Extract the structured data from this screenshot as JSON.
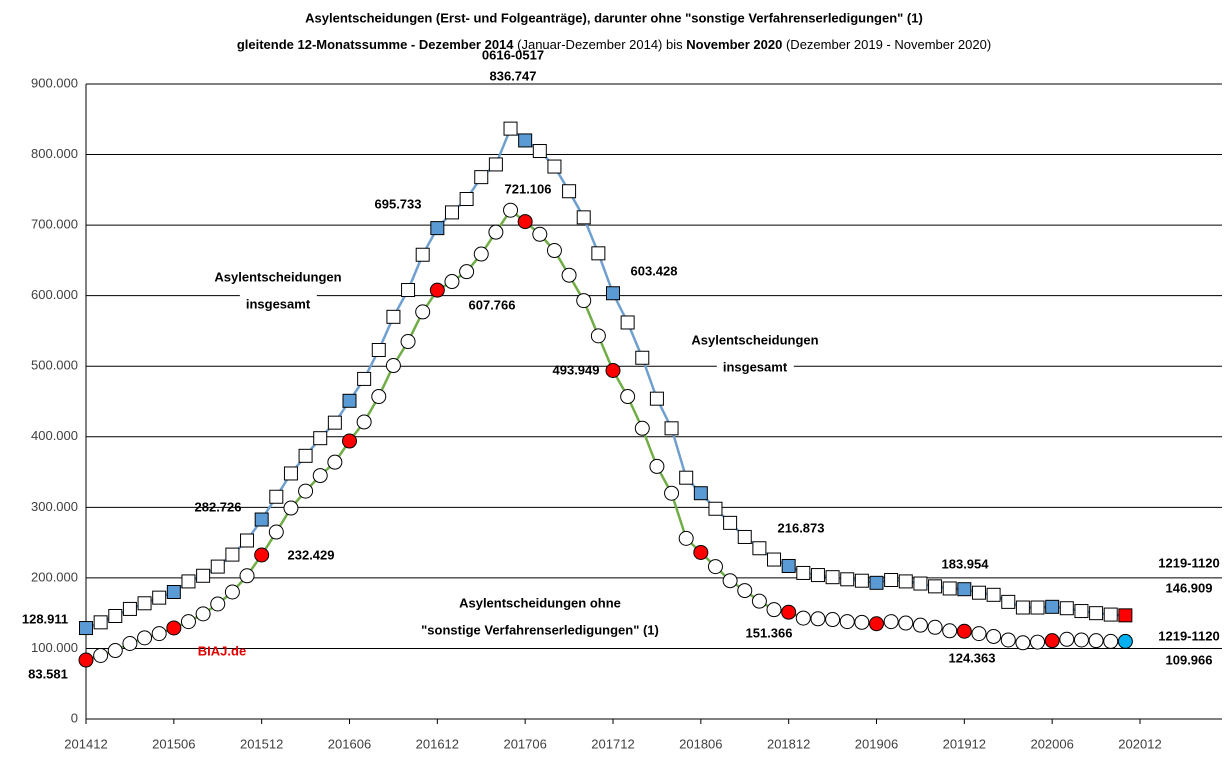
{
  "chart_data": {
    "type": "line",
    "title": "Asylentscheidungen (Erst- und Folgeanträge), darunter ohne \"sonstige Verfahrenserledigungen\" (1)",
    "subtitle": [
      "gleitende 12-Monatssumme - Dezember 2014",
      " (Januar-Dezember 2014) bis ",
      "November 2020",
      " (Dezember 2019 - November 2020)"
    ],
    "categories": [
      "201412",
      null,
      null,
      null,
      null,
      null,
      "201506",
      null,
      null,
      null,
      null,
      null,
      "201512",
      null,
      null,
      null,
      null,
      null,
      "201606",
      null,
      null,
      null,
      null,
      null,
      "201612",
      null,
      null,
      null,
      null,
      null,
      "201706",
      null,
      null,
      null,
      null,
      null,
      "201712",
      null,
      null,
      null,
      null,
      null,
      "201806",
      null,
      null,
      null,
      null,
      null,
      "201812",
      null,
      null,
      null,
      null,
      null,
      "201906",
      null,
      null,
      null,
      null,
      null,
      "201912",
      null,
      null,
      null,
      null,
      null,
      "202006",
      null,
      null,
      null,
      null,
      null,
      "202012"
    ],
    "ylim": [
      0,
      900000
    ],
    "yticks": [
      0,
      {
        "value": 100000,
        "label": "100.000"
      },
      {
        "value": 200000,
        "label": "200.000"
      },
      {
        "value": 300000,
        "label": "300.000"
      },
      {
        "value": 400000,
        "label": "400.000"
      },
      {
        "value": 500000,
        "label": "500.000"
      },
      {
        "value": 600000,
        "label": "600.000"
      },
      {
        "value": 700000,
        "label": "700.000"
      },
      {
        "value": 800000,
        "label": "800.000"
      },
      {
        "value": 900000,
        "label": "900.000"
      }
    ],
    "grid": true,
    "highlight_every": 6,
    "series": [
      {
        "color": "#6f9fcf",
        "marker": "square",
        "marker_fill": "#ffffff",
        "highlight_color": "#5b9bd5",
        "last_color": "#ff0000",
        "values": [
          128911,
          137000,
          146000,
          156000,
          164000,
          172000,
          180000,
          195000,
          203000,
          216000,
          233000,
          253000,
          282726,
          315000,
          348000,
          373000,
          398000,
          420000,
          451000,
          482000,
          523000,
          570000,
          608000,
          658000,
          695733,
          718000,
          737000,
          768000,
          786000,
          836747,
          820000,
          805000,
          783000,
          748000,
          711000,
          660000,
          603428,
          562000,
          512000,
          454000,
          412000,
          342000,
          320000,
          298000,
          278000,
          258000,
          242000,
          226000,
          216873,
          207000,
          204000,
          201000,
          198000,
          196000,
          193000,
          197000,
          195000,
          192000,
          188000,
          185000,
          183954,
          179000,
          176000,
          166000,
          158000,
          158000,
          159000,
          157000,
          153000,
          150000,
          148000,
          146909,
          null
        ],
        "value_labels": [
          "128.911",
          null,
          null,
          null,
          null,
          null,
          null,
          null,
          null,
          null,
          null,
          null,
          "282.726",
          null,
          null,
          null,
          null,
          null,
          null,
          null,
          null,
          null,
          null,
          null,
          "695.733",
          null,
          null,
          null,
          null,
          "836.747",
          null,
          null,
          null,
          null,
          null,
          null,
          "603.428",
          null,
          null,
          null,
          null,
          null,
          null,
          null,
          null,
          null,
          null,
          null,
          "216.873",
          null,
          null,
          null,
          null,
          null,
          null,
          null,
          null,
          null,
          null,
          null,
          "183.954",
          null,
          null,
          null,
          null,
          null,
          null,
          null,
          null,
          null,
          null,
          "146.909",
          null
        ],
        "period_label": "0616-0517",
        "last_period_label": "1219-1120"
      },
      {
        "color": "#70ad47",
        "marker": "circle",
        "marker_fill": "#ffffff",
        "highlight_color": "#ff0000",
        "last_color": "#00b0f0",
        "values": [
          83581,
          90000,
          97000,
          107000,
          115000,
          121000,
          129000,
          138000,
          149000,
          163000,
          180000,
          203000,
          232429,
          265000,
          299000,
          323000,
          345000,
          364000,
          394000,
          421000,
          457000,
          501000,
          535000,
          577000,
          607766,
          620000,
          634000,
          659000,
          690000,
          721106,
          705000,
          687000,
          664000,
          629000,
          593000,
          543000,
          493949,
          457000,
          412000,
          358000,
          320000,
          256000,
          236000,
          216000,
          196000,
          182000,
          167000,
          155000,
          151366,
          143000,
          142000,
          141000,
          138000,
          137000,
          135000,
          138000,
          136000,
          133000,
          130000,
          125000,
          124363,
          121000,
          117000,
          112000,
          108000,
          109000,
          111000,
          113000,
          112000,
          111000,
          110000,
          109966,
          null
        ],
        "value_labels": [
          "83.581",
          null,
          null,
          null,
          null,
          null,
          null,
          null,
          null,
          null,
          null,
          null,
          "232.429",
          null,
          null,
          null,
          null,
          null,
          null,
          null,
          null,
          null,
          null,
          null,
          "607.766",
          null,
          null,
          null,
          null,
          "721.106",
          null,
          null,
          null,
          null,
          null,
          null,
          "493.949",
          null,
          null,
          null,
          null,
          null,
          null,
          null,
          null,
          null,
          null,
          null,
          "151.366",
          null,
          null,
          null,
          null,
          null,
          null,
          null,
          null,
          null,
          null,
          null,
          "124.363",
          null,
          null,
          null,
          null,
          null,
          null,
          null,
          null,
          null,
          null,
          "109.966",
          null
        ],
        "last_period_label": "1219-1120"
      }
    ],
    "annotations": [
      [
        "Asylentscheidungen",
        "insgesamt"
      ],
      [
        "Asylentscheidungen",
        "insgesamt"
      ],
      [
        "Asylentscheidungen ohne",
        "\"sonstige Verfahrenserledigungen\" (1)"
      ]
    ],
    "source": "BIAJ.de"
  }
}
